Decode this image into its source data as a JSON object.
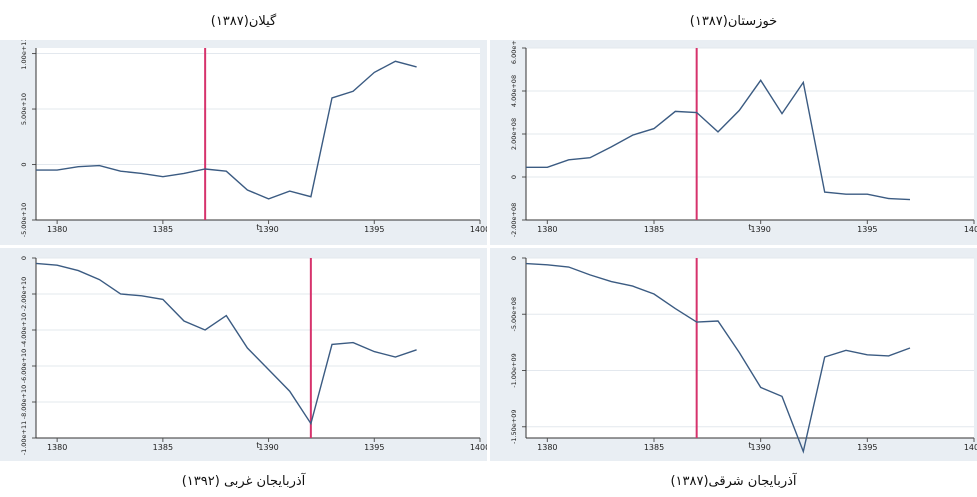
{
  "chart_data": [
    {
      "type": "line",
      "title": "گیلان(۱۳۸۷)",
      "xlabel": "t",
      "xlim": [
        1379,
        1400
      ],
      "x_ticks": [
        1380,
        1385,
        1390,
        1395,
        1400
      ],
      "ylim": [
        -50000000000.0,
        105000000000.0
      ],
      "y_ticks": [
        -50000000000.0,
        0,
        50000000000.0,
        100000000000.0
      ],
      "y_tick_labels": [
        "-5.00e+10",
        "0",
        "5.00e+10",
        "1.00e+11"
      ],
      "x": [
        1379,
        1380,
        1381,
        1382,
        1383,
        1384,
        1385,
        1386,
        1387,
        1388,
        1389,
        1390,
        1391,
        1392,
        1393,
        1394,
        1395,
        1396,
        1397
      ],
      "values": [
        -5000000000.0,
        -5000000000.0,
        -2000000000.0,
        -1000000000.0,
        -6000000000.0,
        -8000000000.0,
        -11000000000.0,
        -8000000000.0,
        -4000000000.0,
        -6000000000.0,
        -23000000000.0,
        -31000000000.0,
        -24000000000.0,
        -29000000000.0,
        60000000000.0,
        66000000000.0,
        83000000000.0,
        93000000000.0,
        88000000000.0
      ],
      "vline": 1387,
      "series_color": "#3b5b82",
      "vline_color": "#d6336c"
    },
    {
      "type": "line",
      "title": "خوزستان(۱۳۸۷)",
      "xlabel": "t",
      "xlim": [
        1379,
        1400
      ],
      "x_ticks": [
        1380,
        1385,
        1390,
        1395,
        1400
      ],
      "ylim": [
        -200000000.0,
        600000000.0
      ],
      "y_ticks": [
        -200000000.0,
        0,
        200000000.0,
        400000000.0,
        600000000.0
      ],
      "y_tick_labels": [
        "-2.00e+08",
        "0",
        "2.00e+08",
        "4.00e+08",
        "6.00e+08"
      ],
      "x": [
        1379,
        1380,
        1381,
        1382,
        1383,
        1384,
        1385,
        1386,
        1387,
        1388,
        1389,
        1390,
        1391,
        1392,
        1393,
        1394,
        1395,
        1396,
        1397
      ],
      "values": [
        45000000.0,
        45000000.0,
        80000000.0,
        90000000.0,
        140000000.0,
        195000000.0,
        225000000.0,
        305000000.0,
        300000000.0,
        210000000.0,
        310000000.0,
        450000000.0,
        295000000.0,
        440000000.0,
        -70000000.0,
        -80000000.0,
        -80000000.0,
        -100000000.0,
        -105000000.0
      ],
      "vline": 1387,
      "series_color": "#3b5b82",
      "vline_color": "#d6336c"
    },
    {
      "type": "line",
      "title": "آذربایجان غربی (۱۳۹۲)",
      "xlabel": "t",
      "xlim": [
        1379,
        1400
      ],
      "x_ticks": [
        1380,
        1385,
        1390,
        1395,
        1400
      ],
      "ylim": [
        -100000000000.0,
        0
      ],
      "y_ticks": [
        0,
        -20000000000.0,
        -40000000000.0,
        -60000000000.0,
        -80000000000.0,
        -100000000000.0
      ],
      "y_tick_labels": [
        "0",
        "-2.00e+10",
        "-4.00e+10",
        "-6.00e+10",
        "-8.00e+10",
        "-1.00e+11"
      ],
      "x": [
        1379,
        1380,
        1381,
        1382,
        1383,
        1384,
        1385,
        1386,
        1387,
        1388,
        1389,
        1390,
        1391,
        1392,
        1393,
        1394,
        1395,
        1396,
        1397
      ],
      "values": [
        -3000000000.0,
        -4000000000.0,
        -7000000000.0,
        -12000000000.0,
        -20000000000.0,
        -21000000000.0,
        -23000000000.0,
        -35000000000.0,
        -40000000000.0,
        -32000000000.0,
        -50000000000.0,
        -62000000000.0,
        -74000000000.0,
        -92000000000.0,
        -48000000000.0,
        -47000000000.0,
        -52000000000.0,
        -55000000000.0,
        -51000000000.0
      ],
      "vline": 1392,
      "series_color": "#3b5b82",
      "vline_color": "#d6336c"
    },
    {
      "type": "line",
      "title": "آذربایجان شرقی(۱۳۸۷)",
      "xlabel": "t",
      "xlim": [
        1379,
        1400
      ],
      "x_ticks": [
        1380,
        1385,
        1390,
        1395,
        1400
      ],
      "ylim": [
        -1600000000.0,
        0
      ],
      "y_ticks": [
        0,
        -500000000.0,
        -1000000000.0,
        -1500000000.0
      ],
      "y_tick_labels": [
        "0",
        "-5.00e+08",
        "-1.00e+09",
        "-1.50e+09"
      ],
      "x": [
        1379,
        1380,
        1381,
        1382,
        1383,
        1384,
        1385,
        1386,
        1387,
        1388,
        1389,
        1390,
        1391,
        1392,
        1393,
        1394,
        1395,
        1396,
        1397
      ],
      "values": [
        -50000000.0,
        -60000000.0,
        -80000000.0,
        -150000000.0,
        -210000000.0,
        -250000000.0,
        -320000000.0,
        -450000000.0,
        -570000000.0,
        -560000000.0,
        -840000000.0,
        -1150000000.0,
        -1230000000.0,
        -1720000000.0,
        -880000000.0,
        -820000000.0,
        -860000000.0,
        -870000000.0,
        -800000000.0
      ],
      "vline": 1387,
      "series_color": "#3b5b82",
      "vline_color": "#d6336c"
    }
  ]
}
